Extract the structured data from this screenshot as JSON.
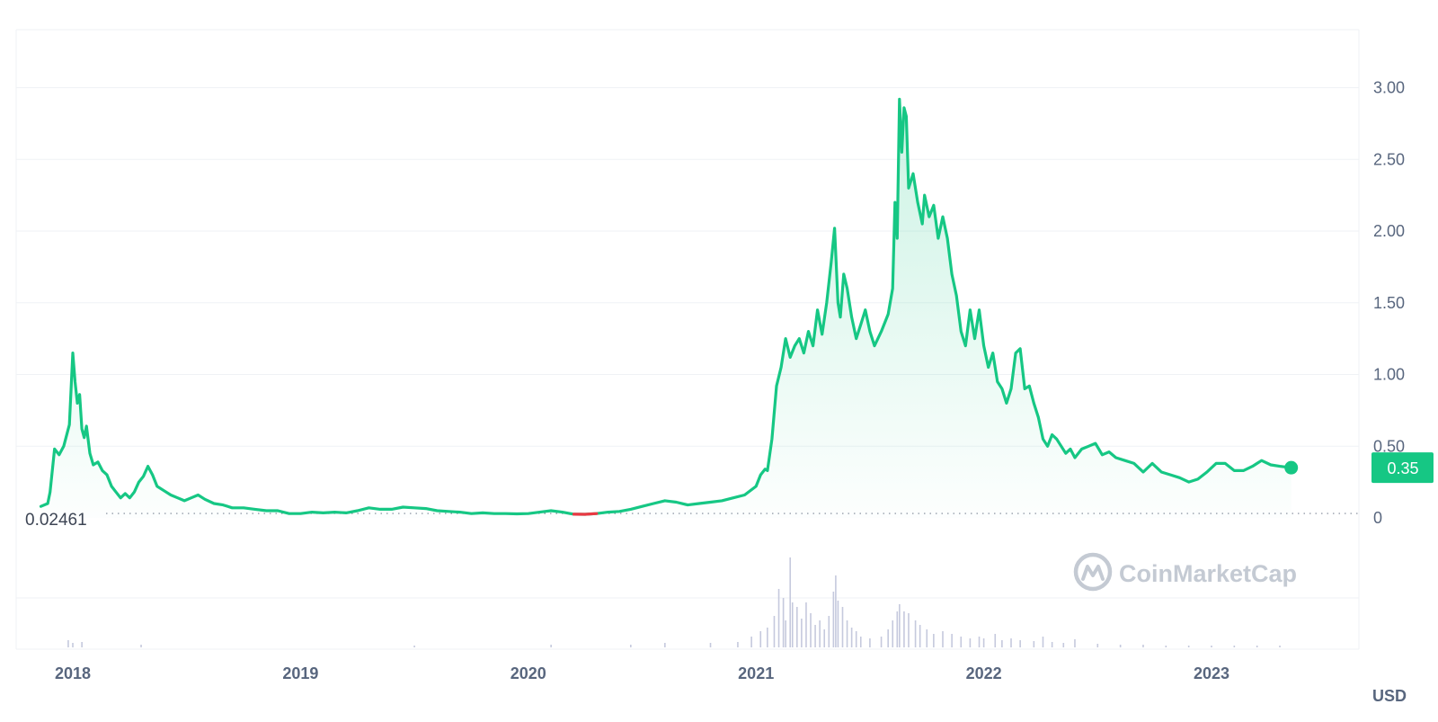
{
  "chart_data": {
    "type": "area",
    "x_axis": {
      "tick_labels": [
        "2018",
        "2019",
        "2020",
        "2021",
        "2022",
        "2023"
      ],
      "range": [
        2017.85,
        2023.4
      ]
    },
    "y_axis": {
      "tick_labels": [
        "0",
        "0.50",
        "1.00",
        "1.50",
        "2.00",
        "2.50",
        "3.00"
      ],
      "ticks": [
        0,
        0.5,
        1.0,
        1.5,
        2.0,
        2.5,
        3.0
      ],
      "range": [
        0,
        3.3
      ],
      "unit": "USD",
      "position": "right"
    },
    "grid": true,
    "low_marker": {
      "label": "0.02461",
      "value": 0.02461
    },
    "last_price": {
      "label": "0.35",
      "value": 0.35
    },
    "line_color": "#16c784",
    "down_color": "#ea3943",
    "volume_color": "#c5c9dd",
    "watermark": "CoinMarketCap",
    "series": [
      {
        "values": [
          [
            2017.86,
            0.08
          ],
          [
            2017.89,
            0.1
          ],
          [
            2017.9,
            0.18
          ],
          [
            2017.92,
            0.48
          ],
          [
            2017.94,
            0.44
          ],
          [
            2017.96,
            0.5
          ],
          [
            2017.985,
            0.65
          ],
          [
            2018.0,
            1.15
          ],
          [
            2018.01,
            0.95
          ],
          [
            2018.02,
            0.8
          ],
          [
            2018.03,
            0.86
          ],
          [
            2018.04,
            0.62
          ],
          [
            2018.05,
            0.56
          ],
          [
            2018.06,
            0.64
          ],
          [
            2018.075,
            0.45
          ],
          [
            2018.09,
            0.37
          ],
          [
            2018.11,
            0.39
          ],
          [
            2018.13,
            0.33
          ],
          [
            2018.15,
            0.3
          ],
          [
            2018.17,
            0.22
          ],
          [
            2018.19,
            0.18
          ],
          [
            2018.21,
            0.14
          ],
          [
            2018.23,
            0.17
          ],
          [
            2018.25,
            0.14
          ],
          [
            2018.27,
            0.18
          ],
          [
            2018.29,
            0.25
          ],
          [
            2018.31,
            0.29
          ],
          [
            2018.33,
            0.36
          ],
          [
            2018.35,
            0.3
          ],
          [
            2018.37,
            0.22
          ],
          [
            2018.4,
            0.19
          ],
          [
            2018.43,
            0.16
          ],
          [
            2018.46,
            0.14
          ],
          [
            2018.49,
            0.12
          ],
          [
            2018.52,
            0.14
          ],
          [
            2018.55,
            0.16
          ],
          [
            2018.58,
            0.13
          ],
          [
            2018.62,
            0.1
          ],
          [
            2018.66,
            0.09
          ],
          [
            2018.7,
            0.07
          ],
          [
            2018.75,
            0.07
          ],
          [
            2018.8,
            0.06
          ],
          [
            2018.85,
            0.05
          ],
          [
            2018.9,
            0.05
          ],
          [
            2018.95,
            0.03
          ],
          [
            2019.0,
            0.03
          ],
          [
            2019.05,
            0.04
          ],
          [
            2019.1,
            0.035
          ],
          [
            2019.15,
            0.04
          ],
          [
            2019.2,
            0.035
          ],
          [
            2019.25,
            0.05
          ],
          [
            2019.3,
            0.07
          ],
          [
            2019.35,
            0.06
          ],
          [
            2019.4,
            0.06
          ],
          [
            2019.45,
            0.075
          ],
          [
            2019.5,
            0.07
          ],
          [
            2019.55,
            0.065
          ],
          [
            2019.6,
            0.05
          ],
          [
            2019.65,
            0.045
          ],
          [
            2019.7,
            0.04
          ],
          [
            2019.75,
            0.03
          ],
          [
            2019.8,
            0.035
          ],
          [
            2019.85,
            0.03
          ],
          [
            2019.9,
            0.03
          ],
          [
            2019.95,
            0.028
          ],
          [
            2020.0,
            0.03
          ],
          [
            2020.05,
            0.04
          ],
          [
            2020.1,
            0.05
          ],
          [
            2020.15,
            0.04
          ],
          [
            2020.2,
            0.026
          ],
          [
            2020.25,
            0.025
          ],
          [
            2020.3,
            0.03
          ],
          [
            2020.35,
            0.04
          ],
          [
            2020.4,
            0.045
          ],
          [
            2020.45,
            0.06
          ],
          [
            2020.5,
            0.08
          ],
          [
            2020.55,
            0.1
          ],
          [
            2020.6,
            0.12
          ],
          [
            2020.65,
            0.11
          ],
          [
            2020.7,
            0.09
          ],
          [
            2020.75,
            0.1
          ],
          [
            2020.8,
            0.11
          ],
          [
            2020.85,
            0.12
          ],
          [
            2020.9,
            0.14
          ],
          [
            2020.95,
            0.16
          ],
          [
            2021.0,
            0.22
          ],
          [
            2021.02,
            0.3
          ],
          [
            2021.04,
            0.34
          ],
          [
            2021.05,
            0.33
          ],
          [
            2021.07,
            0.55
          ],
          [
            2021.09,
            0.92
          ],
          [
            2021.11,
            1.05
          ],
          [
            2021.13,
            1.25
          ],
          [
            2021.15,
            1.12
          ],
          [
            2021.17,
            1.2
          ],
          [
            2021.19,
            1.25
          ],
          [
            2021.21,
            1.15
          ],
          [
            2021.23,
            1.3
          ],
          [
            2021.25,
            1.2
          ],
          [
            2021.27,
            1.45
          ],
          [
            2021.29,
            1.28
          ],
          [
            2021.31,
            1.5
          ],
          [
            2021.33,
            1.78
          ],
          [
            2021.345,
            2.02
          ],
          [
            2021.36,
            1.5
          ],
          [
            2021.37,
            1.4
          ],
          [
            2021.385,
            1.7
          ],
          [
            2021.4,
            1.6
          ],
          [
            2021.42,
            1.4
          ],
          [
            2021.44,
            1.25
          ],
          [
            2021.46,
            1.35
          ],
          [
            2021.48,
            1.45
          ],
          [
            2021.5,
            1.3
          ],
          [
            2021.52,
            1.2
          ],
          [
            2021.55,
            1.3
          ],
          [
            2021.58,
            1.42
          ],
          [
            2021.6,
            1.6
          ],
          [
            2021.61,
            2.2
          ],
          [
            2021.62,
            1.95
          ],
          [
            2021.63,
            2.92
          ],
          [
            2021.64,
            2.55
          ],
          [
            2021.65,
            2.86
          ],
          [
            2021.66,
            2.8
          ],
          [
            2021.67,
            2.3
          ],
          [
            2021.69,
            2.4
          ],
          [
            2021.71,
            2.2
          ],
          [
            2021.73,
            2.05
          ],
          [
            2021.74,
            2.25
          ],
          [
            2021.76,
            2.1
          ],
          [
            2021.78,
            2.18
          ],
          [
            2021.8,
            1.95
          ],
          [
            2021.82,
            2.1
          ],
          [
            2021.84,
            1.95
          ],
          [
            2021.86,
            1.7
          ],
          [
            2021.88,
            1.55
          ],
          [
            2021.9,
            1.3
          ],
          [
            2021.92,
            1.2
          ],
          [
            2021.94,
            1.45
          ],
          [
            2021.96,
            1.25
          ],
          [
            2021.98,
            1.45
          ],
          [
            2022.0,
            1.2
          ],
          [
            2022.02,
            1.05
          ],
          [
            2022.04,
            1.15
          ],
          [
            2022.06,
            0.95
          ],
          [
            2022.08,
            0.9
          ],
          [
            2022.1,
            0.8
          ],
          [
            2022.12,
            0.9
          ],
          [
            2022.14,
            1.15
          ],
          [
            2022.16,
            1.18
          ],
          [
            2022.18,
            0.9
          ],
          [
            2022.2,
            0.92
          ],
          [
            2022.22,
            0.8
          ],
          [
            2022.24,
            0.7
          ],
          [
            2022.26,
            0.55
          ],
          [
            2022.28,
            0.5
          ],
          [
            2022.3,
            0.58
          ],
          [
            2022.32,
            0.55
          ],
          [
            2022.34,
            0.5
          ],
          [
            2022.36,
            0.45
          ],
          [
            2022.38,
            0.48
          ],
          [
            2022.4,
            0.42
          ],
          [
            2022.43,
            0.48
          ],
          [
            2022.46,
            0.5
          ],
          [
            2022.49,
            0.52
          ],
          [
            2022.52,
            0.44
          ],
          [
            2022.55,
            0.46
          ],
          [
            2022.58,
            0.42
          ],
          [
            2022.62,
            0.4
          ],
          [
            2022.66,
            0.38
          ],
          [
            2022.7,
            0.32
          ],
          [
            2022.74,
            0.38
          ],
          [
            2022.78,
            0.32
          ],
          [
            2022.82,
            0.3
          ],
          [
            2022.86,
            0.28
          ],
          [
            2022.9,
            0.25
          ],
          [
            2022.94,
            0.27
          ],
          [
            2022.98,
            0.32
          ],
          [
            2023.02,
            0.38
          ],
          [
            2023.06,
            0.38
          ],
          [
            2023.1,
            0.33
          ],
          [
            2023.14,
            0.33
          ],
          [
            2023.18,
            0.36
          ],
          [
            2023.22,
            0.4
          ],
          [
            2023.26,
            0.37
          ],
          [
            2023.3,
            0.36
          ],
          [
            2023.35,
            0.35
          ]
        ],
        "down_segment": {
          "from": 2020.2,
          "to": 2020.3
        }
      }
    ],
    "volume_relative": [
      [
        2017.98,
        0.08
      ],
      [
        2018.0,
        0.05
      ],
      [
        2018.04,
        0.06
      ],
      [
        2018.3,
        0.03
      ],
      [
        2019.5,
        0.02
      ],
      [
        2020.1,
        0.03
      ],
      [
        2020.45,
        0.03
      ],
      [
        2020.6,
        0.05
      ],
      [
        2020.8,
        0.05
      ],
      [
        2020.92,
        0.06
      ],
      [
        2020.98,
        0.12
      ],
      [
        2021.02,
        0.18
      ],
      [
        2021.05,
        0.22
      ],
      [
        2021.08,
        0.35
      ],
      [
        2021.1,
        0.65
      ],
      [
        2021.12,
        0.55
      ],
      [
        2021.13,
        0.3
      ],
      [
        2021.15,
        1.0
      ],
      [
        2021.16,
        0.5
      ],
      [
        2021.18,
        0.45
      ],
      [
        2021.2,
        0.32
      ],
      [
        2021.22,
        0.5
      ],
      [
        2021.24,
        0.38
      ],
      [
        2021.26,
        0.25
      ],
      [
        2021.28,
        0.3
      ],
      [
        2021.3,
        0.2
      ],
      [
        2021.32,
        0.35
      ],
      [
        2021.34,
        0.62
      ],
      [
        2021.35,
        0.8
      ],
      [
        2021.36,
        0.52
      ],
      [
        2021.38,
        0.45
      ],
      [
        2021.4,
        0.3
      ],
      [
        2021.42,
        0.22
      ],
      [
        2021.44,
        0.18
      ],
      [
        2021.46,
        0.12
      ],
      [
        2021.5,
        0.1
      ],
      [
        2021.55,
        0.12
      ],
      [
        2021.58,
        0.2
      ],
      [
        2021.6,
        0.3
      ],
      [
        2021.62,
        0.4
      ],
      [
        2021.63,
        0.48
      ],
      [
        2021.65,
        0.4
      ],
      [
        2021.67,
        0.38
      ],
      [
        2021.7,
        0.3
      ],
      [
        2021.72,
        0.25
      ],
      [
        2021.75,
        0.2
      ],
      [
        2021.78,
        0.15
      ],
      [
        2021.82,
        0.18
      ],
      [
        2021.86,
        0.15
      ],
      [
        2021.9,
        0.12
      ],
      [
        2021.94,
        0.1
      ],
      [
        2021.98,
        0.12
      ],
      [
        2022.0,
        0.1
      ],
      [
        2022.05,
        0.15
      ],
      [
        2022.08,
        0.08
      ],
      [
        2022.12,
        0.1
      ],
      [
        2022.16,
        0.08
      ],
      [
        2022.22,
        0.07
      ],
      [
        2022.26,
        0.12
      ],
      [
        2022.3,
        0.06
      ],
      [
        2022.35,
        0.05
      ],
      [
        2022.4,
        0.09
      ],
      [
        2022.5,
        0.04
      ],
      [
        2022.6,
        0.03
      ],
      [
        2022.7,
        0.03
      ],
      [
        2022.8,
        0.02
      ],
      [
        2022.9,
        0.02
      ],
      [
        2023.0,
        0.02
      ],
      [
        2023.1,
        0.02
      ],
      [
        2023.2,
        0.02
      ],
      [
        2023.3,
        0.02
      ]
    ]
  }
}
